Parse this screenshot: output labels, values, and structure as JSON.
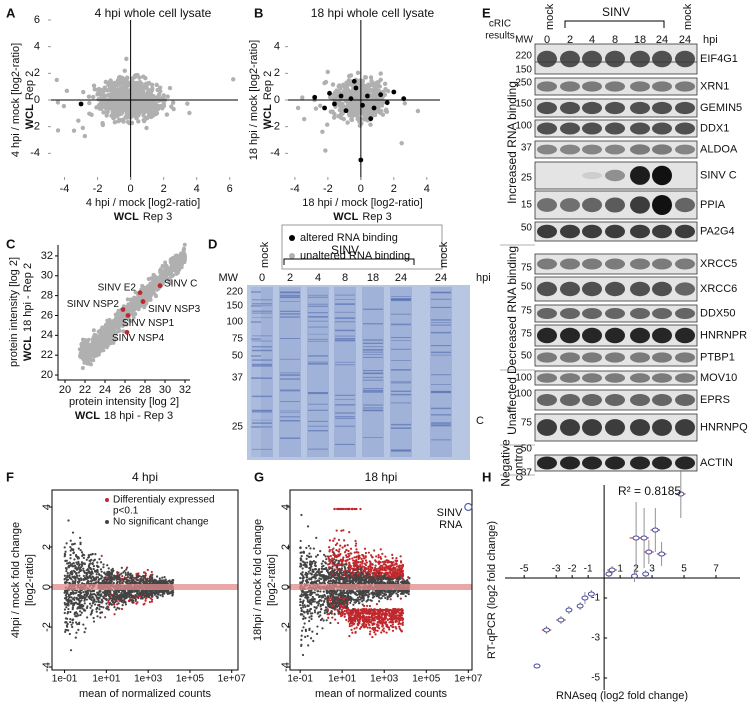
{
  "a": {
    "label": "A",
    "title": "4 hpi whole cell lysate",
    "xlabel": "4 hpi / mock [log2-ratio]",
    "xlabel_sub": {
      "bold": "WCL",
      "text": "Rep 3"
    },
    "ylabel": "4 hpi / mock [log2-ratio]",
    "ylabel_sub": {
      "bold": "WCL",
      "text": "Rep 2"
    },
    "xlim": [
      -5,
      6.5
    ],
    "ylim": [
      -6,
      6
    ],
    "xticks": [
      -4,
      -2,
      0,
      2,
      4,
      6
    ],
    "yticks": [
      -4,
      -2,
      0,
      2,
      4,
      6
    ],
    "points": {
      "x": [
        -3
      ],
      "y": [
        -0.3
      ]
    }
  },
  "b": {
    "label": "B",
    "title": "18 hpi whole cell lysate",
    "xlabel": "18 hpi / mock [log2-ratio]",
    "xlabel_sub": {
      "bold": "WCL",
      "text": "Rep 3"
    },
    "ylabel": "18 hpi / mock [log2-ratio]",
    "ylabel_sub": {
      "bold": "WCL",
      "text": "Rep 2"
    },
    "xlim": [
      -4.6,
      4.8
    ],
    "ylim": [
      -6,
      6
    ],
    "xticks": [
      -4,
      -2,
      0,
      2,
      4
    ],
    "yticks": [
      -4,
      -2,
      0,
      2,
      4
    ],
    "points": {
      "x": [
        -2.8,
        -2.2,
        -1.9,
        -1.6,
        -1.2,
        -0.9,
        -0.6,
        -0.3,
        0.1,
        0.4,
        0.8,
        1.2,
        1.6,
        2.0,
        2.6,
        0.0,
        -0.4,
        0.6
      ],
      "y": [
        0.2,
        -0.6,
        0.5,
        -0.3,
        0.3,
        -0.8,
        0.1,
        0.9,
        -0.4,
        0.3,
        -0.6,
        0.4,
        -0.2,
        0.6,
        0.1,
        -4.5,
        1.4,
        -1.4
      ]
    },
    "legend": [
      {
        "name": "altered RNA binding",
        "color": "#000000"
      },
      {
        "name": "unaltered RNA binding",
        "color": "#b0b0b0"
      }
    ]
  },
  "c": {
    "label": "C",
    "xlabel": "protein intensity [log 2]",
    "xlabel_sub": {
      "bold": "WCL",
      "text": "18 hpi - Rep 3"
    },
    "ylabel": "protein intensity [log 2]",
    "ylabel_sub": {
      "bold": "WCL",
      "text": "18 hpi - Rep 2"
    },
    "xlim": [
      19.3,
      32.5
    ],
    "ylim": [
      19.5,
      33.1
    ],
    "xticks": [
      20,
      22,
      24,
      26,
      28,
      30,
      32
    ],
    "yticks": [
      20,
      22,
      24,
      26,
      28,
      30,
      32
    ],
    "points": {
      "names": [
        "SINV C",
        "SINV E2",
        "SINV NSP2",
        "SINV NSP3",
        "SINV NSP1",
        "SINV NSP4"
      ],
      "x": [
        29.5,
        27.5,
        25.8,
        27.8,
        26.3,
        26.2
      ],
      "y": [
        29.0,
        28.3,
        26.6,
        27.4,
        26.0,
        24.3
      ]
    }
  },
  "d": {
    "label": "D",
    "mw_title": "MW",
    "mw": [
      220,
      150,
      100,
      75,
      50,
      37,
      25
    ],
    "lanes": [
      0,
      2,
      4,
      8,
      18,
      24,
      24
    ],
    "groups": [
      "mock",
      "SINV",
      "mock"
    ],
    "unit": "hpi",
    "marker": "C"
  },
  "e": {
    "label": "E",
    "header": [
      "cRIC",
      "results"
    ],
    "mw_title": "MW",
    "lanes": [
      0,
      2,
      4,
      8,
      18,
      24,
      24
    ],
    "groups": [
      "mock",
      "SINV",
      "mock"
    ],
    "unit": "hpi",
    "sections": [
      {
        "name": [
          "Increased RNA binding"
        ],
        "rows": [
          {
            "protein": "EIF4G1",
            "mw": [
              220,
              150
            ]
          },
          {
            "protein": "XRN1",
            "mw": [
              250
            ]
          },
          {
            "protein": "GEMIN5",
            "mw": [
              150
            ]
          },
          {
            "protein": "DDX1",
            "mw": [
              100
            ]
          },
          {
            "protein": "ALDOA",
            "mw": [
              37
            ]
          },
          {
            "protein": "SINV C",
            "mw": [
              25
            ]
          },
          {
            "protein": "PPIA",
            "mw": [
              15
            ]
          },
          {
            "protein": "PA2G4",
            "mw": [
              50
            ]
          }
        ]
      },
      {
        "name": [
          "Decreased RNA binding"
        ],
        "rows": [
          {
            "protein": "XRCC5",
            "mw": [
              75
            ]
          },
          {
            "protein": "XRCC6",
            "mw": [
              50
            ]
          },
          {
            "protein": "DDX50",
            "mw": [
              75
            ]
          },
          {
            "protein": "HNRNPR",
            "mw": [
              75
            ]
          },
          {
            "protein": "PTBP1",
            "mw": [
              50
            ]
          }
        ]
      },
      {
        "name": [
          "Unaffected"
        ],
        "rows": [
          {
            "protein": "MOV10",
            "mw": [
              100
            ]
          },
          {
            "protein": "EPRS",
            "mw": [
              100
            ]
          },
          {
            "protein": "HNRNPQ",
            "mw": [
              75
            ]
          }
        ]
      },
      {
        "name": [
          "Negative",
          "control"
        ],
        "rows": [
          {
            "protein": "ACTIN",
            "mw": [
              50,
              37
            ]
          }
        ]
      }
    ]
  },
  "f": {
    "label": "F",
    "title": "4 hpi",
    "ylabel": [
      "4hpi / mock fold change",
      "[log2-ratio]"
    ],
    "xlabel": "mean of normalized counts",
    "log_x": true,
    "xlim": [
      0.025,
      20000000
    ],
    "ylim": [
      -4.15,
      4.85
    ],
    "xticks": [
      {
        "value": 0.1,
        "label": "1e-01"
      },
      {
        "value": 10,
        "label": "1e+01"
      },
      {
        "value": 1000,
        "label": "1e+03"
      },
      {
        "value": 100000,
        "label": "1e+05"
      },
      {
        "value": 10000000,
        "label": "1e+07"
      }
    ],
    "yticks": [
      -4,
      -2,
      0,
      2,
      4
    ],
    "legend": [
      {
        "name": "Differentialy expressed",
        "note": "p<0.1",
        "color": "#c0282d"
      },
      {
        "name": "No significant change",
        "color": "#444444"
      }
    ]
  },
  "g": {
    "label": "G",
    "title": "18 hpi",
    "ylabel": [
      "18hpi / mock fold change",
      "[log2-ratio]"
    ],
    "xlabel": "mean of normalized counts",
    "log_x": true,
    "xlim": [
      0.033,
      15000000
    ],
    "ylim": [
      -4.15,
      4.85
    ],
    "xticks": [
      {
        "value": 0.1,
        "label": "1e-01"
      },
      {
        "value": 10,
        "label": "1e+01"
      },
      {
        "value": 1000,
        "label": "1e+03"
      },
      {
        "value": 100000,
        "label": "1e+05"
      },
      {
        "value": 10000000,
        "label": "1e+07"
      }
    ],
    "yticks": [
      -4,
      -2,
      0,
      2,
      4
    ],
    "annotation": {
      "text": [
        "SINV",
        "RNA"
      ],
      "x": 10000000,
      "y": 4
    }
  },
  "h": {
    "label": "H",
    "r2": "R² = 0.8185",
    "ylabel": "RT-qPCR (log2 fold change)",
    "xlabel": "RNAseq (log2 fold change)",
    "xlim": [
      -6.2,
      8.5
    ],
    "ylim": [
      -5.6,
      4.65
    ],
    "xticks": [
      -5,
      -3,
      -2,
      -1,
      1,
      2,
      3,
      5,
      7
    ],
    "yticks": [
      -5,
      -3,
      -1
    ],
    "points": {
      "x": [
        4.8,
        3.2,
        2.0,
        2.5,
        3.6,
        2.8,
        1.9,
        2.6,
        0.5,
        0.3,
        -0.8,
        -1.2,
        -1.5,
        -2.2,
        -2.7,
        -3.6,
        -4.2
      ],
      "y": [
        4.2,
        2.4,
        2.0,
        2.0,
        1.2,
        1.3,
        0.1,
        0.2,
        0.4,
        0.2,
        -0.8,
        -1.0,
        -1.4,
        -1.6,
        -2.1,
        -2.6,
        -4.4
      ],
      "xerr": [
        0.3,
        0.3,
        0.4,
        0.3,
        0.3,
        0.3,
        0.2,
        0.2,
        0.3,
        0.2,
        0.2,
        0.2,
        0.2,
        0.2,
        0.3,
        0.3,
        0.1
      ],
      "yerr": [
        1.2,
        1.1,
        1.8,
        1.5,
        0.6,
        0.6,
        0.3,
        0.2,
        0.2,
        0.2,
        0.2,
        0.3,
        0.2,
        0.2,
        0.2,
        0.2,
        0.1
      ]
    }
  }
}
